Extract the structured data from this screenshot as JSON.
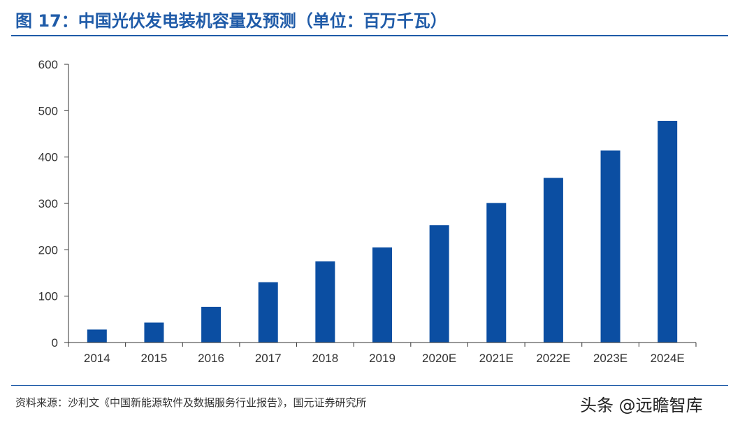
{
  "header": {
    "title": "图 17：中国光伏发电装机容量及预测（单位：百万千瓦）"
  },
  "footer": {
    "source": "资料来源：沙利文《中国新能源软件及数据服务行业报告》，国元证券研究所",
    "watermark": "头条 @远瞻智库"
  },
  "colors": {
    "accent": "#1f5ba8",
    "bar": "#0b4ea2",
    "axis": "#333333"
  },
  "chart_data": {
    "type": "bar",
    "categories": [
      "2014",
      "2015",
      "2016",
      "2017",
      "2018",
      "2019",
      "2020E",
      "2021E",
      "2022E",
      "2023E",
      "2024E"
    ],
    "values": [
      28,
      43,
      77,
      130,
      175,
      205,
      253,
      301,
      355,
      414,
      478
    ],
    "ylim": [
      0,
      600
    ],
    "yticks": [
      0,
      100,
      200,
      300,
      400,
      500,
      600
    ],
    "grid": false,
    "legend": false
  }
}
